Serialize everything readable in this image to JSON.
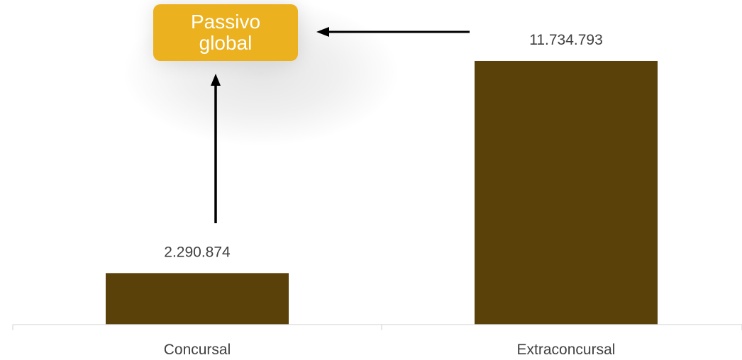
{
  "chart_data": {
    "type": "bar",
    "categories": [
      "Concursal",
      "Extraconcursal"
    ],
    "values": [
      2290874,
      11734793
    ],
    "value_labels": [
      "2.290.874",
      "11.734.793"
    ],
    "xlabel": "",
    "ylabel": "",
    "ylim": [
      0,
      13500000
    ],
    "bar_color": "#5a4009",
    "annotation": {
      "text": "Passivo global",
      "background": "#ecb11f",
      "text_color": "#ffffff"
    },
    "grid": false,
    "legend": "none"
  }
}
